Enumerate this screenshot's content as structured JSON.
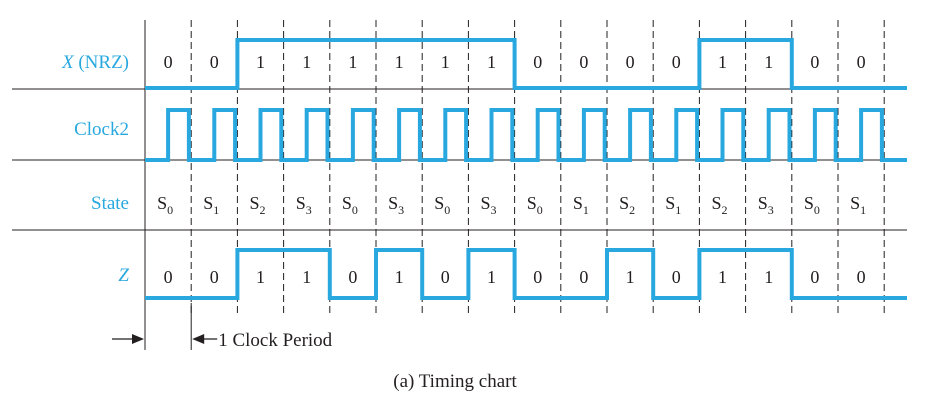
{
  "rows": [
    {
      "key": "x",
      "label_main": "X",
      "label_rest": " (NRZ)",
      "label_italic": true,
      "name": "x-nrz"
    },
    {
      "key": "clock",
      "label_main": "Clock2",
      "label_rest": "",
      "label_italic": false,
      "name": "clock2"
    },
    {
      "key": "state",
      "label_main": "State",
      "label_rest": "",
      "label_italic": false,
      "name": "state"
    },
    {
      "key": "z",
      "label_main": "Z",
      "label_rest": "",
      "label_italic": true,
      "name": "z"
    }
  ],
  "x_bits": [
    "0",
    "0",
    "1",
    "1",
    "1",
    "1",
    "1",
    "1",
    "0",
    "0",
    "0",
    "0",
    "1",
    "1",
    "0",
    "0"
  ],
  "states": [
    "0",
    "1",
    "2",
    "3",
    "0",
    "3",
    "0",
    "3",
    "0",
    "1",
    "2",
    "1",
    "2",
    "3",
    "0",
    "1"
  ],
  "state_prefix": "S",
  "z_bits": [
    "0",
    "0",
    "1",
    "1",
    "0",
    "1",
    "0",
    "1",
    "0",
    "0",
    "1",
    "0",
    "1",
    "1",
    "0",
    "0"
  ],
  "clock_label": "1 Clock Period",
  "caption": "(a) Timing chart",
  "colors": {
    "signal": "#29a8df",
    "ink": "#231f20",
    "rule": "#231f20",
    "label": "#29a8df"
  }
}
